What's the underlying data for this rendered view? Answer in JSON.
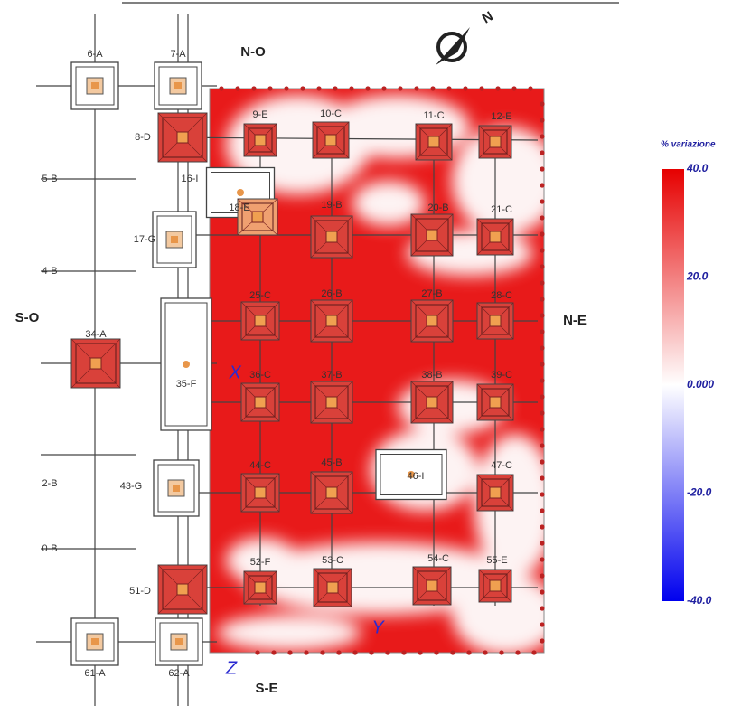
{
  "nodes": [
    {
      "label": "6-A"
    },
    {
      "label": "7-A"
    },
    {
      "label": "8-D"
    },
    {
      "label": "9-E"
    },
    {
      "label": "10-C"
    },
    {
      "label": "11-C"
    },
    {
      "label": "12-E"
    },
    {
      "label": "16-I"
    },
    {
      "label": "18-E"
    },
    {
      "label": "17-G"
    },
    {
      "label": "19-B"
    },
    {
      "label": "20-B"
    },
    {
      "label": "21-C"
    },
    {
      "label": "25-C"
    },
    {
      "label": "26-B"
    },
    {
      "label": "27-B"
    },
    {
      "label": "28-C"
    },
    {
      "label": "34-A"
    },
    {
      "label": "35-F"
    },
    {
      "label": "36-C"
    },
    {
      "label": "37-B"
    },
    {
      "label": "38-B"
    },
    {
      "label": "39-C"
    },
    {
      "label": "43-G"
    },
    {
      "label": "44-C"
    },
    {
      "label": "45-B"
    },
    {
      "label": "46-I"
    },
    {
      "label": "47-C"
    },
    {
      "label": "51-D"
    },
    {
      "label": "52-F"
    },
    {
      "label": "53-C"
    },
    {
      "label": "54-C"
    },
    {
      "label": "55-E"
    },
    {
      "label": "61-A"
    },
    {
      "label": "62-A"
    }
  ],
  "beams": [
    "5-B",
    "4-B",
    "2-B",
    "0-B"
  ],
  "orientation": {
    "north_west": "N-O",
    "south_west": "S-O",
    "north_east": "N-E",
    "south_east": "S-E",
    "compass": "N"
  },
  "axes": {
    "x": "X",
    "y": "Y",
    "z": "Z"
  },
  "legend": {
    "title": "% variazione",
    "ticks": [
      "40.0",
      "20.0",
      "0.000",
      "-20.0",
      "-40.0"
    ]
  }
}
